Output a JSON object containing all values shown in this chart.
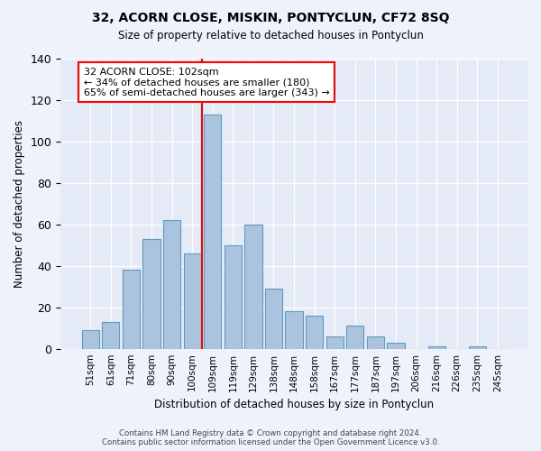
{
  "title": "32, ACORN CLOSE, MISKIN, PONTYCLUN, CF72 8SQ",
  "subtitle": "Size of property relative to detached houses in Pontyclun",
  "xlabel": "Distribution of detached houses by size in Pontyclun",
  "ylabel": "Number of detached properties",
  "bar_labels": [
    "51sqm",
    "61sqm",
    "71sqm",
    "80sqm",
    "90sqm",
    "100sqm",
    "109sqm",
    "119sqm",
    "129sqm",
    "138sqm",
    "148sqm",
    "158sqm",
    "167sqm",
    "177sqm",
    "187sqm",
    "197sqm",
    "206sqm",
    "216sqm",
    "226sqm",
    "235sqm",
    "245sqm"
  ],
  "bar_values": [
    9,
    13,
    38,
    53,
    62,
    46,
    113,
    50,
    60,
    29,
    18,
    16,
    6,
    11,
    6,
    3,
    0,
    1,
    0,
    1,
    0
  ],
  "bar_color": "#aac4e0",
  "bar_edge_color": "#5f9abb",
  "vline_x": 5.5,
  "vline_color": "red",
  "ylim": [
    0,
    140
  ],
  "yticks": [
    0,
    20,
    40,
    60,
    80,
    100,
    120,
    140
  ],
  "annotation_title": "32 ACORN CLOSE: 102sqm",
  "annotation_line1": "← 34% of detached houses are smaller (180)",
  "annotation_line2": "65% of semi-detached houses are larger (343) →",
  "annotation_box_color": "#ffffff",
  "annotation_box_edge_color": "red",
  "footer1": "Contains HM Land Registry data © Crown copyright and database right 2024.",
  "footer2": "Contains public sector information licensed under the Open Government Licence v3.0.",
  "bg_color": "#eef2fa",
  "plot_bg_color": "#e4eaf6"
}
